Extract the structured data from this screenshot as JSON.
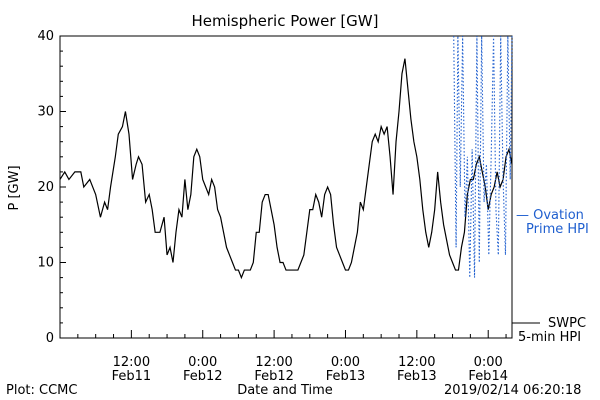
{
  "chart_data": {
    "type": "line",
    "title": "Hemispheric Power [GW]",
    "xlabel": "Date and Time",
    "ylabel": "P [GW]",
    "ylim": [
      0,
      40
    ],
    "yticks": [
      0,
      10,
      20,
      30,
      40
    ],
    "x_range_hours": [
      0,
      76
    ],
    "x_ticks": [
      {
        "hour": 12,
        "time": "12:00",
        "date": "Feb11"
      },
      {
        "hour": 24,
        "time": "0:00",
        "date": "Feb12"
      },
      {
        "hour": 36,
        "time": "12:00",
        "date": "Feb12"
      },
      {
        "hour": 48,
        "time": "0:00",
        "date": "Feb13"
      },
      {
        "hour": 60,
        "time": "12:00",
        "date": "Feb13"
      },
      {
        "hour": 72,
        "time": "0:00",
        "date": "Feb14"
      }
    ],
    "x_axis_origin": "2019/02/11 0:00",
    "series": [
      {
        "name": "SWPC 5-min HPI",
        "color": "#000000",
        "style": "solid",
        "points": [
          [
            0,
            21
          ],
          [
            0.8,
            22
          ],
          [
            1.5,
            21
          ],
          [
            2.5,
            22
          ],
          [
            3.5,
            22
          ],
          [
            4,
            20
          ],
          [
            5,
            21
          ],
          [
            6,
            19
          ],
          [
            6.8,
            16
          ],
          [
            7.5,
            18
          ],
          [
            8,
            17
          ],
          [
            8.5,
            20
          ],
          [
            9.3,
            24
          ],
          [
            9.8,
            27
          ],
          [
            10.5,
            28
          ],
          [
            11,
            30
          ],
          [
            11.6,
            27
          ],
          [
            12.2,
            21
          ],
          [
            12.8,
            23
          ],
          [
            13.2,
            24
          ],
          [
            13.8,
            23
          ],
          [
            14.4,
            18
          ],
          [
            15,
            19
          ],
          [
            15.5,
            17
          ],
          [
            16,
            14
          ],
          [
            16.8,
            14
          ],
          [
            17.5,
            16
          ],
          [
            18,
            11
          ],
          [
            18.5,
            12
          ],
          [
            19,
            10
          ],
          [
            19.5,
            14
          ],
          [
            20,
            17
          ],
          [
            20.5,
            16
          ],
          [
            21,
            21
          ],
          [
            21.5,
            17
          ],
          [
            22,
            19
          ],
          [
            22.5,
            24
          ],
          [
            23,
            25
          ],
          [
            23.5,
            24
          ],
          [
            24,
            21
          ],
          [
            24.5,
            20
          ],
          [
            25,
            19
          ],
          [
            25.5,
            21
          ],
          [
            26,
            20
          ],
          [
            26.5,
            17
          ],
          [
            27,
            16
          ],
          [
            27.5,
            14
          ],
          [
            28,
            12
          ],
          [
            28.5,
            11
          ],
          [
            29,
            10
          ],
          [
            29.5,
            9
          ],
          [
            30,
            9
          ],
          [
            30.5,
            8
          ],
          [
            31,
            9
          ],
          [
            32,
            9
          ],
          [
            32.5,
            10
          ],
          [
            33,
            14
          ],
          [
            33.5,
            14
          ],
          [
            34,
            18
          ],
          [
            34.5,
            19
          ],
          [
            35,
            19
          ],
          [
            35.5,
            17
          ],
          [
            36,
            15
          ],
          [
            36.5,
            12
          ],
          [
            37,
            10
          ],
          [
            37.5,
            10
          ],
          [
            38,
            9
          ],
          [
            39,
            9
          ],
          [
            40,
            9
          ],
          [
            40.5,
            10
          ],
          [
            41,
            11
          ],
          [
            41.5,
            14
          ],
          [
            42,
            17
          ],
          [
            42.5,
            17
          ],
          [
            43,
            19
          ],
          [
            43.5,
            18
          ],
          [
            44,
            16
          ],
          [
            44.5,
            19
          ],
          [
            45,
            20
          ],
          [
            45.5,
            19
          ],
          [
            46,
            15
          ],
          [
            46.5,
            12
          ],
          [
            47,
            11
          ],
          [
            47.5,
            10
          ],
          [
            48,
            9
          ],
          [
            48.5,
            9
          ],
          [
            49,
            10
          ],
          [
            49.5,
            12
          ],
          [
            50,
            14
          ],
          [
            50.5,
            18
          ],
          [
            51,
            17
          ],
          [
            51.5,
            20
          ],
          [
            52,
            23
          ],
          [
            52.5,
            26
          ],
          [
            53,
            27
          ],
          [
            53.5,
            26
          ],
          [
            54,
            28
          ],
          [
            54.5,
            27
          ],
          [
            55,
            28
          ],
          [
            55.5,
            24
          ],
          [
            56,
            19
          ],
          [
            56.5,
            26
          ],
          [
            57,
            30
          ],
          [
            57.5,
            35
          ],
          [
            58,
            37
          ],
          [
            58.5,
            33
          ],
          [
            59,
            29
          ],
          [
            59.5,
            26
          ],
          [
            60,
            24
          ],
          [
            60.5,
            21
          ],
          [
            61,
            17
          ],
          [
            61.5,
            14
          ],
          [
            62,
            12
          ],
          [
            62.5,
            14
          ],
          [
            63,
            17
          ],
          [
            63.5,
            22
          ],
          [
            64,
            18
          ],
          [
            64.5,
            15
          ],
          [
            65,
            13
          ],
          [
            65.5,
            11
          ],
          [
            66,
            10
          ],
          [
            66.5,
            9
          ],
          [
            67,
            9
          ],
          [
            67.5,
            12
          ],
          [
            68,
            14
          ],
          [
            68.5,
            19
          ],
          [
            69,
            21
          ],
          [
            69.5,
            21
          ],
          [
            70,
            23
          ],
          [
            70.5,
            24
          ],
          [
            71,
            22
          ],
          [
            71.5,
            20
          ],
          [
            72,
            17
          ],
          [
            72.5,
            19
          ],
          [
            73,
            20
          ],
          [
            73.5,
            22
          ],
          [
            74,
            20
          ],
          [
            74.5,
            21
          ],
          [
            75,
            24
          ],
          [
            75.5,
            25
          ],
          [
            76,
            23
          ]
        ]
      },
      {
        "name": "Ovation Prime HPI",
        "color": "#1f5fcf",
        "style": "dotted",
        "points": [
          [
            66.2,
            40
          ],
          [
            66.6,
            12
          ],
          [
            66.9,
            40
          ],
          [
            67.3,
            20
          ],
          [
            67.7,
            40
          ],
          [
            68.1,
            16
          ],
          [
            68.5,
            24
          ],
          [
            68.9,
            8
          ],
          [
            69.3,
            25
          ],
          [
            69.7,
            8
          ],
          [
            70.1,
            40
          ],
          [
            70.5,
            10
          ],
          [
            70.9,
            40
          ],
          [
            71.3,
            18
          ],
          [
            71.7,
            23
          ],
          [
            72.1,
            11
          ],
          [
            72.5,
            24
          ],
          [
            72.9,
            40
          ],
          [
            73.3,
            17
          ],
          [
            73.7,
            11
          ],
          [
            74.1,
            40
          ],
          [
            74.5,
            21
          ],
          [
            74.9,
            11
          ],
          [
            75.3,
            40
          ],
          [
            75.7,
            21
          ],
          [
            76,
            40
          ]
        ]
      }
    ],
    "legend": {
      "swpc_line1": "SWPC",
      "swpc_line2": "5-min HPI",
      "ovation_line1": "— Ovation",
      "ovation_line2": "Prime HPI"
    },
    "grid": false
  },
  "footer": {
    "plot_credit": "Plot: CCMC",
    "timestamp": "2019/02/14 06:20:18"
  }
}
